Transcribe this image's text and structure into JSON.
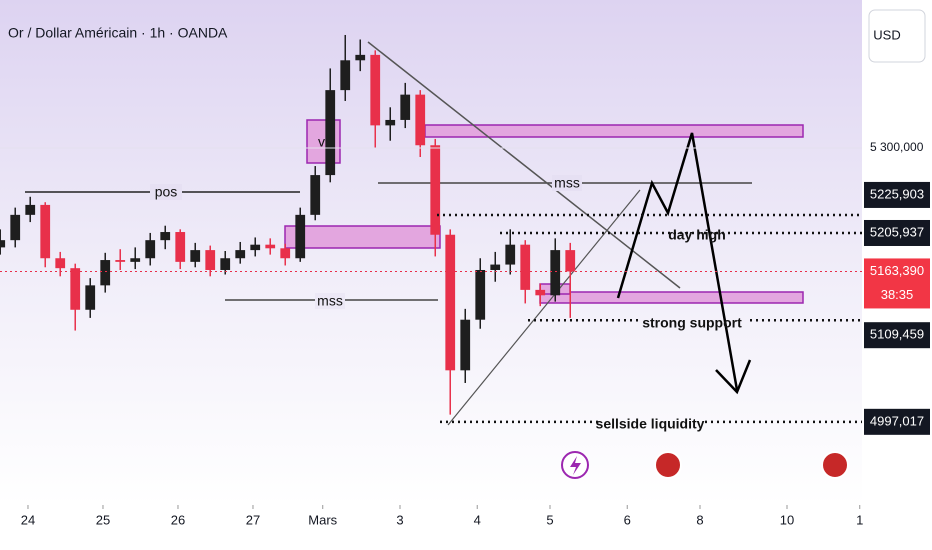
{
  "chart_data": {
    "type": "candlestick",
    "title": "Or / Dollar Américain · 1h · OANDA",
    "currency": "USD",
    "x": [
      -0.37,
      -0.17,
      0.03,
      0.23,
      0.43,
      0.63,
      0.83,
      1.03,
      1.23,
      1.43,
      1.63,
      1.83,
      2.03,
      2.23,
      2.43,
      2.63,
      2.83,
      3.03,
      3.23,
      3.43,
      3.63,
      3.83,
      4.03,
      4.23,
      4.43,
      4.63,
      4.83,
      5.03,
      5.23,
      5.43,
      5.63,
      5.83,
      6.03,
      6.23,
      6.43,
      6.63,
      6.83,
      7.03,
      7.23
    ],
    "open": [
      5190,
      5198,
      5226,
      5237,
      5178,
      5167,
      5121,
      5148,
      5176,
      5174,
      5178,
      5198,
      5207,
      5174,
      5187,
      5165,
      5178,
      5187,
      5193,
      5189,
      5178,
      5226,
      5270,
      5364,
      5397,
      5403,
      5325,
      5331,
      5359,
      5303,
      5204,
      5054,
      5110,
      5165,
      5171,
      5193,
      5143,
      5137,
      5187
    ],
    "high": [
      5210,
      5234,
      5246,
      5240,
      5185,
      5172,
      5156,
      5184,
      5188,
      5190,
      5206,
      5214,
      5210,
      5195,
      5192,
      5186,
      5196,
      5201,
      5200,
      5194,
      5234,
      5280,
      5388,
      5425,
      5420,
      5408,
      5345,
      5372,
      5364,
      5310,
      5210,
      5122,
      5178,
      5185,
      5210,
      5198,
      5150,
      5200,
      5195
    ],
    "low": [
      5182,
      5190,
      5218,
      5168,
      5158,
      5098,
      5112,
      5140,
      5165,
      5166,
      5170,
      5188,
      5166,
      5168,
      5158,
      5160,
      5172,
      5180,
      5182,
      5170,
      5174,
      5220,
      5262,
      5352,
      5385,
      5300,
      5308,
      5322,
      5290,
      5180,
      5005,
      5040,
      5100,
      5152,
      5160,
      5128,
      5125,
      5130,
      5112
    ],
    "close": [
      5198,
      5226,
      5237,
      5178,
      5167,
      5121,
      5148,
      5176,
      5174,
      5178,
      5198,
      5207,
      5174,
      5187,
      5165,
      5178,
      5187,
      5193,
      5189,
      5178,
      5226,
      5270,
      5364,
      5397,
      5403,
      5325,
      5331,
      5359,
      5303,
      5204,
      5054,
      5110,
      5165,
      5171,
      5193,
      5143,
      5137,
      5187,
      5163.39
    ],
    "up_color": "#1e1e1e",
    "down_color": "#e8304a",
    "xlim": [
      -0.373,
      11.12
    ],
    "xticks": [
      {
        "value": 0,
        "label": "24"
      },
      {
        "value": 1,
        "label": "25"
      },
      {
        "value": 2,
        "label": "26"
      },
      {
        "value": 3,
        "label": "27"
      },
      {
        "value": 3.93,
        "label": "Mars"
      },
      {
        "value": 4.96,
        "label": "3"
      },
      {
        "value": 5.99,
        "label": "4"
      },
      {
        "value": 6.96,
        "label": "5"
      },
      {
        "value": 7.99,
        "label": "6"
      },
      {
        "value": 8.96,
        "label": "8"
      },
      {
        "value": 10.12,
        "label": "10"
      },
      {
        "value": 11.09,
        "label": "1"
      }
    ],
    "ylim": [
      4905,
      5463.7
    ],
    "yticks": [
      {
        "value": 5300,
        "label": "5 300,000"
      }
    ],
    "price_labels": [
      {
        "value": 5225.903,
        "label": "5225,903"
      },
      {
        "value": 5205.937,
        "label": "5205,937"
      },
      {
        "value": 5163.39,
        "label": "5163,390"
      },
      {
        "value": 5109.459,
        "label": "5109,459"
      },
      {
        "value": 4997.017,
        "label": "4997,017"
      }
    ],
    "countdown": "38:35",
    "annotations": [
      "pos",
      "mss",
      "vl",
      "mss",
      "day high",
      "strong support",
      "sellside liquidity"
    ]
  }
}
